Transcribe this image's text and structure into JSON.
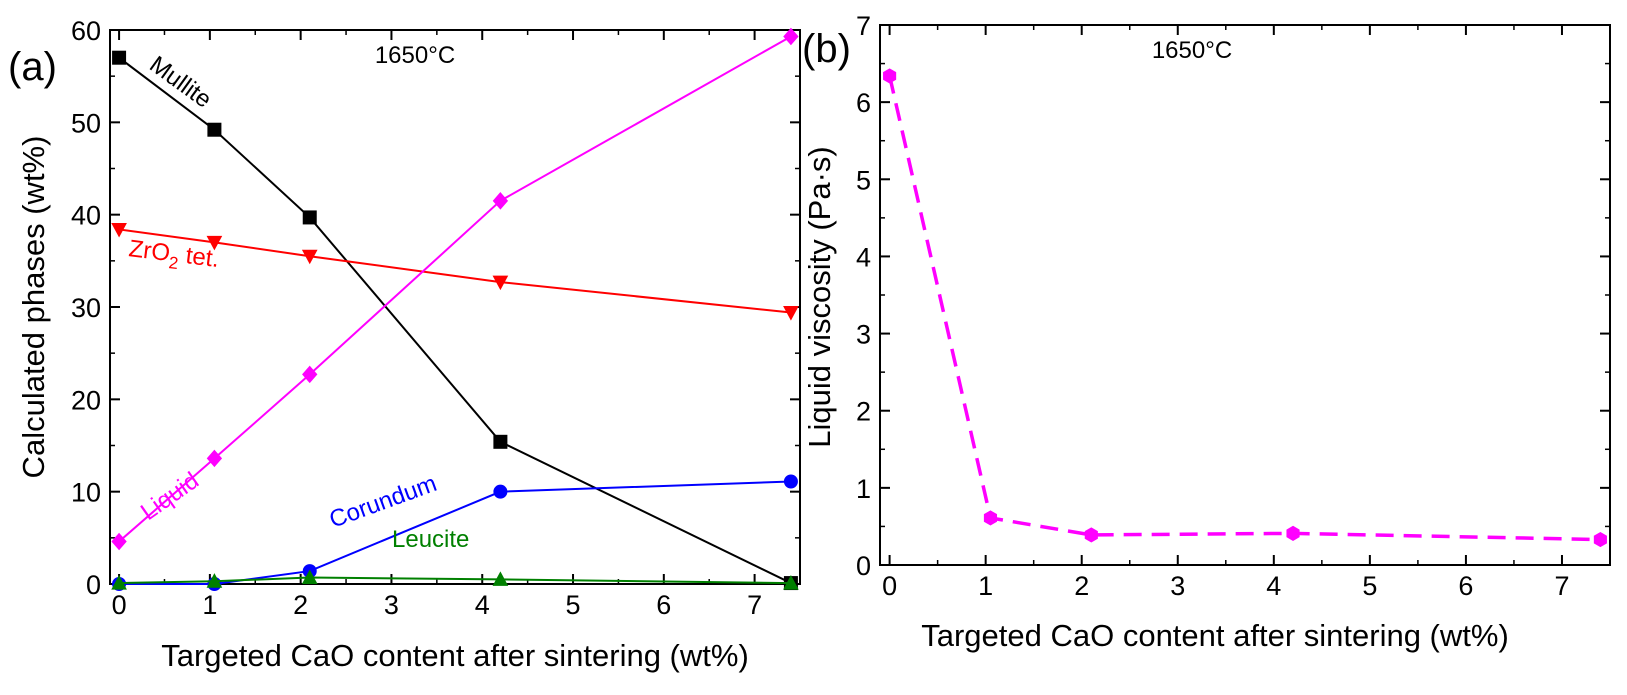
{
  "chart_data": [
    {
      "type": "line",
      "panel_label": "(a)",
      "annotation": "1650°C",
      "xlabel": "Targeted CaO content after sintering (wt%)",
      "ylabel": "Calculated phases (wt%)",
      "xlim": [
        -0.1,
        7.5
      ],
      "ylim": [
        0,
        60
      ],
      "xticks": [
        "0",
        "1",
        "2",
        "3",
        "4",
        "5",
        "6",
        "7"
      ],
      "yticks": [
        "0",
        "10",
        "20",
        "30",
        "40",
        "50",
        "60"
      ],
      "grid": false,
      "legend": "none (inline labels)",
      "series": [
        {
          "name": "Mullite",
          "color": "#000000",
          "marker": "square",
          "x": [
            0,
            1.05,
            2.1,
            4.2,
            7.4
          ],
          "y": [
            57.0,
            49.2,
            39.7,
            15.4,
            0.1
          ]
        },
        {
          "name": "ZrO2 tet.",
          "label_main": "ZrO",
          "label_sub": "2",
          "label_tail": " tet.",
          "color": "#ff0000",
          "marker": "triangle-down",
          "x": [
            0,
            1.05,
            2.1,
            4.2,
            7.4
          ],
          "y": [
            38.4,
            37.0,
            35.5,
            32.7,
            29.4
          ]
        },
        {
          "name": "Liquid",
          "color": "#ff00ff",
          "marker": "diamond",
          "x": [
            0,
            1.05,
            2.1,
            4.2,
            7.4
          ],
          "y": [
            4.6,
            13.6,
            22.7,
            41.5,
            59.3
          ]
        },
        {
          "name": "Corundum",
          "color": "#0000ff",
          "marker": "circle",
          "x": [
            0,
            1.05,
            2.1,
            4.2,
            7.4
          ],
          "y": [
            0.0,
            0.0,
            1.4,
            10.0,
            11.1
          ]
        },
        {
          "name": "Leucite",
          "color": "#008000",
          "marker": "triangle-up",
          "x": [
            0,
            1.05,
            2.1,
            4.2,
            7.4
          ],
          "y": [
            0.1,
            0.3,
            0.7,
            0.5,
            0.1
          ]
        }
      ]
    },
    {
      "type": "line",
      "panel_label": "(b)",
      "annotation": "1650°C",
      "xlabel": "Targeted CaO content after sintering (wt%)",
      "ylabel": "Liquid viscosity (Pa·s)",
      "xlim": [
        -0.1,
        7.5
      ],
      "ylim": [
        0,
        7
      ],
      "xticks": [
        "0",
        "1",
        "2",
        "3",
        "4",
        "5",
        "6",
        "7"
      ],
      "yticks": [
        "0",
        "1",
        "2",
        "3",
        "4",
        "5",
        "6",
        "7"
      ],
      "grid": false,
      "legend": "none",
      "series": [
        {
          "color": "#ff00ff",
          "marker": "hexagon",
          "line_style": "dashed",
          "x": [
            0,
            1.05,
            2.1,
            4.2,
            7.4
          ],
          "y": [
            6.34,
            0.61,
            0.39,
            0.41,
            0.33
          ]
        }
      ]
    }
  ]
}
